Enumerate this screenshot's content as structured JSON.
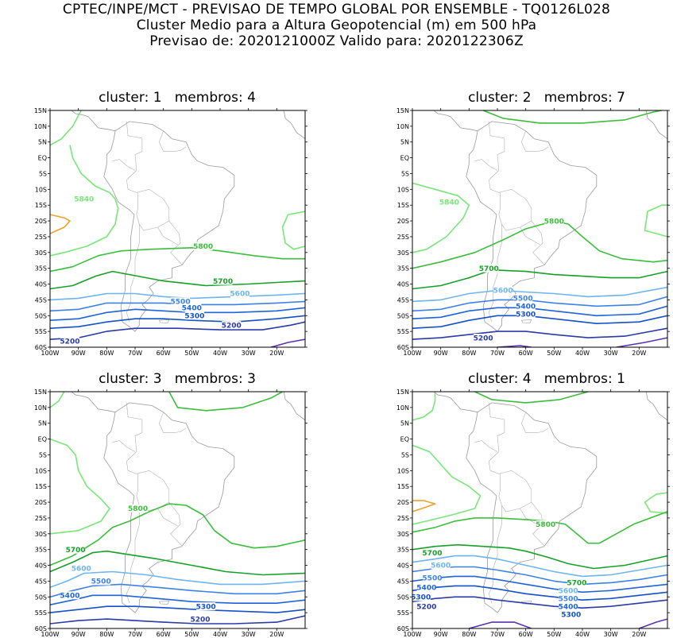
{
  "header": {
    "line1": "CPTEC/INPE/MCT - PREVISAO DE TEMPO GLOBAL POR ENSEMBLE - TQ0126L028",
    "line2": "Cluster Medio para a Altura Geopotencial (m) em 500 hPa",
    "line3": "Previsao de: 2020121000Z   Valido para: 2020122306Z"
  },
  "axes": {
    "lat_labels": [
      "15N",
      "10N",
      "5N",
      "EQ",
      "5S",
      "10S",
      "15S",
      "20S",
      "25S",
      "30S",
      "35S",
      "40S",
      "45S",
      "50S",
      "55S",
      "60S"
    ],
    "lon_labels": [
      "100W",
      "90W",
      "80W",
      "70W",
      "60W",
      "50W",
      "40W",
      "30W",
      "20W"
    ]
  },
  "colors": {
    "c5200": "#2a3aa8",
    "c5300": "#1450c8",
    "c5400": "#1e64d8",
    "c5500": "#3c82e6",
    "c5600": "#6eb4f0",
    "c5700": "#16a028",
    "c5800": "#3cbe3c",
    "c5840": "#78e678",
    "c5880": "#f0a028",
    "c5100": "#5a32b4"
  },
  "panels": [
    {
      "title": "cluster: 1   membros: 4",
      "labels": [
        {
          "text": "5840",
          "color": "c5840",
          "lon": -88,
          "lat": -13
        },
        {
          "text": "5800",
          "color": "c5800",
          "lon": -46,
          "lat": -28
        },
        {
          "text": "5700",
          "color": "c5700",
          "lon": -39,
          "lat": -39
        },
        {
          "text": "5600",
          "color": "c5600",
          "lon": -33,
          "lat": -43
        },
        {
          "text": "5500",
          "color": "c5500",
          "lon": -54,
          "lat": -45.5
        },
        {
          "text": "5400",
          "color": "c5400",
          "lon": -50,
          "lat": -47.5
        },
        {
          "text": "5300",
          "color": "c5300",
          "lon": -49,
          "lat": -50
        },
        {
          "text": "5200",
          "color": "c5200",
          "lon": -36,
          "lat": -53
        },
        {
          "text": "5200",
          "color": "c5200",
          "lon": -93,
          "lat": -58
        }
      ]
    },
    {
      "title": "cluster: 2   membros: 7",
      "labels": [
        {
          "text": "5840",
          "color": "c5840",
          "lon": -87,
          "lat": -14
        },
        {
          "text": "5800",
          "color": "c5800",
          "lon": -50,
          "lat": -20
        },
        {
          "text": "5700",
          "color": "c5700",
          "lon": -73,
          "lat": -35
        },
        {
          "text": "5600",
          "color": "c5600",
          "lon": -68,
          "lat": -42
        },
        {
          "text": "5500",
          "color": "c5500",
          "lon": -61,
          "lat": -44.5
        },
        {
          "text": "5400",
          "color": "c5400",
          "lon": -60,
          "lat": -47
        },
        {
          "text": "5300",
          "color": "c5300",
          "lon": -60,
          "lat": -49.5
        },
        {
          "text": "5200",
          "color": "c5200",
          "lon": -75,
          "lat": -57
        }
      ]
    },
    {
      "title": "cluster: 3   membros: 3",
      "labels": [
        {
          "text": "5800",
          "color": "c5800",
          "lon": -69,
          "lat": -22
        },
        {
          "text": "5700",
          "color": "c5700",
          "lon": -91,
          "lat": -35
        },
        {
          "text": "5600",
          "color": "c5600",
          "lon": -89,
          "lat": -41
        },
        {
          "text": "5500",
          "color": "c5500",
          "lon": -82,
          "lat": -45
        },
        {
          "text": "5400",
          "color": "c5400",
          "lon": -93,
          "lat": -49.5
        },
        {
          "text": "5300",
          "color": "c5300",
          "lon": -45,
          "lat": -53
        },
        {
          "text": "5200",
          "color": "c5200",
          "lon": -47,
          "lat": -57
        }
      ]
    },
    {
      "title": "cluster: 4   membros: 1",
      "labels": [
        {
          "text": "5800",
          "color": "c5800",
          "lon": -53,
          "lat": -27
        },
        {
          "text": "5700",
          "color": "c5700",
          "lon": -93,
          "lat": -36
        },
        {
          "text": "5600",
          "color": "c5600",
          "lon": -90,
          "lat": -40
        },
        {
          "text": "5500",
          "color": "c5500",
          "lon": -93,
          "lat": -44
        },
        {
          "text": "5400",
          "color": "c5400",
          "lon": -95,
          "lat": -47
        },
        {
          "text": "5300",
          "color": "c5300",
          "lon": -97,
          "lat": -50
        },
        {
          "text": "5200",
          "color": "c5200",
          "lon": -95,
          "lat": -53
        },
        {
          "text": "5700",
          "color": "c5700",
          "lon": -42,
          "lat": -45.5
        },
        {
          "text": "5600",
          "color": "c5600",
          "lon": -45,
          "lat": -48
        },
        {
          "text": "5500",
          "color": "c5500",
          "lon": -45,
          "lat": -50.5
        },
        {
          "text": "5400",
          "color": "c5400",
          "lon": -45,
          "lat": -53
        },
        {
          "text": "5300",
          "color": "c5300",
          "lon": -44,
          "lat": -55.5
        }
      ]
    }
  ]
}
